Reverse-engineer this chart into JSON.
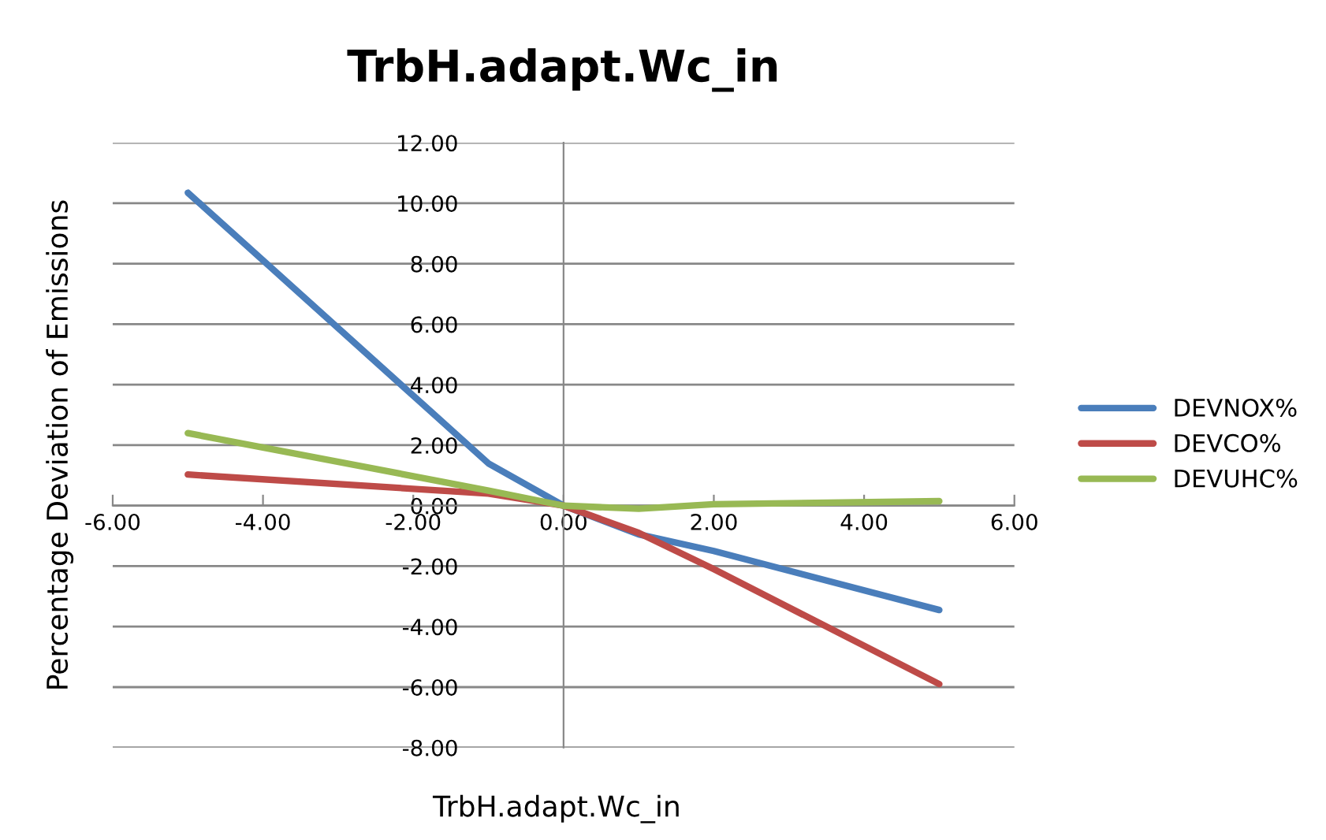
{
  "chart_data": {
    "type": "line",
    "title": "TrbH.adapt.Wc_in",
    "xlabel": "TrbH.adapt.Wc_in",
    "ylabel": "Percentage Deviation of Emissions",
    "x": [
      -5,
      -1,
      0,
      1,
      2,
      5
    ],
    "series": [
      {
        "name": "DEVNOX%",
        "color": "#4a7ebb",
        "values": [
          10.35,
          1.4,
          0,
          -0.95,
          -1.5,
          -3.45
        ]
      },
      {
        "name": "DEVCO%",
        "color": "#be4b48",
        "values": [
          1.03,
          0.4,
          0,
          -0.9,
          -2.1,
          -5.9
        ]
      },
      {
        "name": "DEVUHC%",
        "color": "#98b954",
        "values": [
          2.4,
          0.5,
          0,
          -0.1,
          0.05,
          0.15
        ]
      }
    ],
    "xlim": [
      -6,
      6
    ],
    "xticks": [
      {
        "value": -6,
        "label": "-6.00"
      },
      {
        "value": -4,
        "label": "-4.00"
      },
      {
        "value": -2,
        "label": "-2.00"
      },
      {
        "value": 0,
        "label": "0.00"
      },
      {
        "value": 2,
        "label": "2.00"
      },
      {
        "value": 4,
        "label": "4.00"
      },
      {
        "value": 6,
        "label": "6.00"
      }
    ],
    "ylim": [
      -8,
      12
    ],
    "yticks": [
      {
        "value": -8,
        "label": "-8.00"
      },
      {
        "value": -6,
        "label": "-6.00"
      },
      {
        "value": -4,
        "label": "-4.00"
      },
      {
        "value": -2,
        "label": "-2.00"
      },
      {
        "value": 0,
        "label": "0.00"
      },
      {
        "value": 2,
        "label": "2.00"
      },
      {
        "value": 4,
        "label": "4.00"
      },
      {
        "value": 6,
        "label": "6.00"
      },
      {
        "value": 8,
        "label": "8.00"
      },
      {
        "value": 10,
        "label": "10.00"
      },
      {
        "value": 12,
        "label": "12.00"
      }
    ],
    "grid": "y",
    "legend": "right",
    "marker": "none",
    "line_style": "solid"
  }
}
